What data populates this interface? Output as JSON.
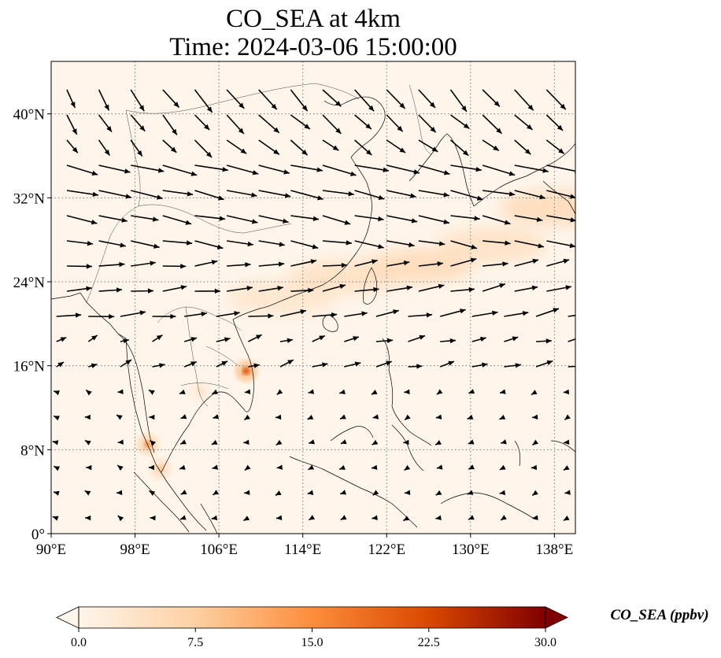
{
  "chart_data": {
    "type": "heatmap",
    "title_line1": "CO_SEA at 4km",
    "title_line2": "Time: 2024-03-06 15:00:00",
    "field": "CO_SEA",
    "extent": {
      "lon": [
        90,
        140
      ],
      "lat": [
        0,
        45
      ]
    },
    "x_ticks": [
      "90°E",
      "98°E",
      "106°E",
      "114°E",
      "122°E",
      "130°E",
      "138°E"
    ],
    "x_tick_values": [
      90,
      98,
      106,
      114,
      122,
      130,
      138
    ],
    "y_ticks": [
      "0°",
      "8°N",
      "16°N",
      "24°N",
      "32°N",
      "40°N"
    ],
    "y_tick_values": [
      0,
      8,
      16,
      24,
      32,
      40
    ],
    "grid": true,
    "colorbar": {
      "label": "CO_SEA (ppbv)",
      "min": 0,
      "max": 30,
      "ticks": [
        "0.0",
        "7.5",
        "15.0",
        "22.5",
        "30.0"
      ],
      "tick_values": [
        0,
        7.5,
        15,
        22.5,
        30
      ],
      "colormap": [
        "#fff5eb",
        "#fdd0a2",
        "#fd8d3c",
        "#d94801",
        "#7f0000"
      ],
      "extend": "both"
    },
    "hotspots": [
      {
        "lon": 108.6,
        "lat": 15.5,
        "value": 22
      },
      {
        "lon": 99.2,
        "lat": 8.5,
        "value": 14
      },
      {
        "lon": 100.4,
        "lat": 6.2,
        "value": 9
      },
      {
        "lon": 104.2,
        "lat": 13.6,
        "value": 4
      }
    ],
    "plume": {
      "description_values": [
        {
          "lon": 112,
          "lat": 22.5,
          "value": 3
        },
        {
          "lon": 118,
          "lat": 24.5,
          "value": 4
        },
        {
          "lon": 125,
          "lat": 25.5,
          "value": 5
        },
        {
          "lon": 132,
          "lat": 27.5,
          "value": 4
        },
        {
          "lon": 138,
          "lat": 31,
          "value": 5
        }
      ]
    }
  }
}
